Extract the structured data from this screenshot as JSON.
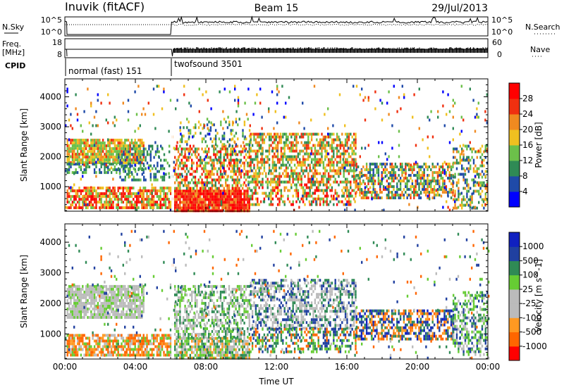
{
  "header": {
    "station": "Inuvik (fitACF)",
    "beam": "Beam 15",
    "date": "29/Jul/2013"
  },
  "top_panels": {
    "nsky_label": "N.Sky",
    "nsky_ticks": [
      "10^5",
      "10^0"
    ],
    "nsearch_label": "N.Search",
    "nsearch_ticks": [
      "10^5",
      "10^0"
    ],
    "freq_label": [
      "Freq.",
      "[MHz]"
    ],
    "freq_ticks": [
      "18",
      "8"
    ],
    "nave_label": "Nave",
    "nave_ticks": [
      "60",
      "0"
    ],
    "cpid_label": "CPID",
    "cpid_segments": [
      {
        "label": "normal (fast) 151",
        "start_hour": 0.0,
        "end_hour": 6.1
      },
      {
        "label": "twofsound 3501",
        "start_hour": 6.1,
        "end_hour": 24.0
      }
    ]
  },
  "chart_data": [
    {
      "type": "heatmap",
      "name": "power",
      "xlabel": "",
      "ylabel": "Slant Range [km]",
      "xlim": [
        0,
        24
      ],
      "ylim": [
        180,
        4600
      ],
      "yticks": [
        "1000",
        "2000",
        "3000",
        "4000"
      ],
      "colorbar_label": "Power [dB]",
      "colorbar_ticks": [
        "28",
        "24",
        "20",
        "16",
        "12",
        "8",
        "4"
      ],
      "colorbar_colors": [
        "#0000ff",
        "#1f4aa8",
        "#2f8a55",
        "#6cc04a",
        "#f0c020",
        "#f08a20",
        "#f03010",
        "#ff0000"
      ],
      "scatter_regions": [
        {
          "t": [
            0.1,
            4.5
          ],
          "r": [
            1800,
            2600
          ],
          "d": 0.85,
          "pal": [
            3,
            4,
            5,
            6,
            4,
            3
          ]
        },
        {
          "t": [
            0.1,
            4.5
          ],
          "r": [
            1500,
            1800
          ],
          "d": 0.5,
          "pal": [
            1,
            2,
            3
          ]
        },
        {
          "t": [
            0.1,
            6.0
          ],
          "r": [
            300,
            1000
          ],
          "d": 0.75,
          "pal": [
            3,
            4,
            5,
            6,
            7
          ]
        },
        {
          "t": [
            3.0,
            6.0
          ],
          "r": [
            1200,
            2400
          ],
          "d": 0.35,
          "pal": [
            1,
            2,
            3
          ]
        },
        {
          "t": [
            6.2,
            10.5
          ],
          "r": [
            200,
            900
          ],
          "d": 0.95,
          "pal": [
            6,
            7,
            7,
            5
          ]
        },
        {
          "t": [
            6.2,
            10.5
          ],
          "r": [
            900,
            2400
          ],
          "d": 0.6,
          "pal": [
            2,
            3,
            4,
            5,
            6,
            7
          ]
        },
        {
          "t": [
            6.5,
            10.5
          ],
          "r": [
            2400,
            3300
          ],
          "d": 0.25,
          "pal": [
            1,
            2,
            3,
            4
          ]
        },
        {
          "t": [
            10.5,
            16.5
          ],
          "r": [
            1200,
            2800
          ],
          "d": 0.6,
          "pal": [
            2,
            3,
            4,
            5,
            6
          ]
        },
        {
          "t": [
            10.5,
            16.5
          ],
          "r": [
            400,
            1200
          ],
          "d": 0.45,
          "pal": [
            2,
            3,
            4,
            5,
            6,
            7
          ]
        },
        {
          "t": [
            16.5,
            22.0
          ],
          "r": [
            600,
            1800
          ],
          "d": 0.6,
          "pal": [
            1,
            2,
            3,
            4,
            5,
            6
          ]
        },
        {
          "t": [
            22.0,
            24.0
          ],
          "r": [
            300,
            2400
          ],
          "d": 0.45,
          "pal": [
            1,
            2,
            3,
            4,
            5
          ]
        },
        {
          "t": [
            0.0,
            24.0
          ],
          "r": [
            200,
            4400
          ],
          "d": 0.035,
          "pal": [
            0,
            1,
            2,
            3,
            4,
            5,
            6
          ]
        }
      ]
    },
    {
      "type": "heatmap",
      "name": "velocity",
      "xlabel": "Time UT",
      "ylabel": "Slant Range [km]",
      "xlim": [
        0,
        24
      ],
      "ylim": [
        180,
        4600
      ],
      "xticks": [
        "00:00",
        "04:00",
        "08:00",
        "12:00",
        "16:00",
        "20:00",
        "00:00"
      ],
      "yticks": [
        "1000",
        "2000",
        "3000",
        "4000"
      ],
      "colorbar_label": "Velocity [m s^-1]",
      "colorbar_ticks": [
        "1000",
        "500",
        "100",
        "25",
        "-25",
        "-100",
        "-500",
        "-1000"
      ],
      "colorbar_colors": [
        "#ff0000",
        "#ff6600",
        "#ff9922",
        "#bbbbbb",
        "#bbbbbb",
        "#66cc33",
        "#2f8a55",
        "#2040a0",
        "#1020c0"
      ],
      "scatter_regions": [
        {
          "t": [
            0.1,
            4.5
          ],
          "r": [
            1500,
            2600
          ],
          "d": 0.85,
          "pal": [
            3,
            3,
            4,
            5,
            3
          ]
        },
        {
          "t": [
            0.1,
            6.0
          ],
          "r": [
            300,
            1000
          ],
          "d": 0.75,
          "pal": [
            1,
            2,
            1,
            5,
            3
          ]
        },
        {
          "t": [
            6.2,
            10.5
          ],
          "r": [
            200,
            900
          ],
          "d": 0.8,
          "pal": [
            5,
            6,
            3,
            2
          ]
        },
        {
          "t": [
            6.2,
            10.5
          ],
          "r": [
            900,
            2600
          ],
          "d": 0.55,
          "pal": [
            3,
            4,
            5,
            6
          ]
        },
        {
          "t": [
            10.5,
            16.5
          ],
          "r": [
            1200,
            2800
          ],
          "d": 0.55,
          "pal": [
            3,
            4,
            6,
            7
          ]
        },
        {
          "t": [
            10.5,
            16.5
          ],
          "r": [
            400,
            1200
          ],
          "d": 0.45,
          "pal": [
            5,
            6,
            7,
            1
          ]
        },
        {
          "t": [
            16.5,
            22.0
          ],
          "r": [
            800,
            1800
          ],
          "d": 0.6,
          "pal": [
            6,
            7,
            8,
            1,
            2
          ]
        },
        {
          "t": [
            22.0,
            24.0
          ],
          "r": [
            300,
            2400
          ],
          "d": 0.45,
          "pal": [
            3,
            5,
            6,
            7
          ]
        },
        {
          "t": [
            0.0,
            24.0
          ],
          "r": [
            200,
            4400
          ],
          "d": 0.03,
          "pal": [
            1,
            3,
            5,
            6,
            7
          ]
        }
      ]
    }
  ]
}
